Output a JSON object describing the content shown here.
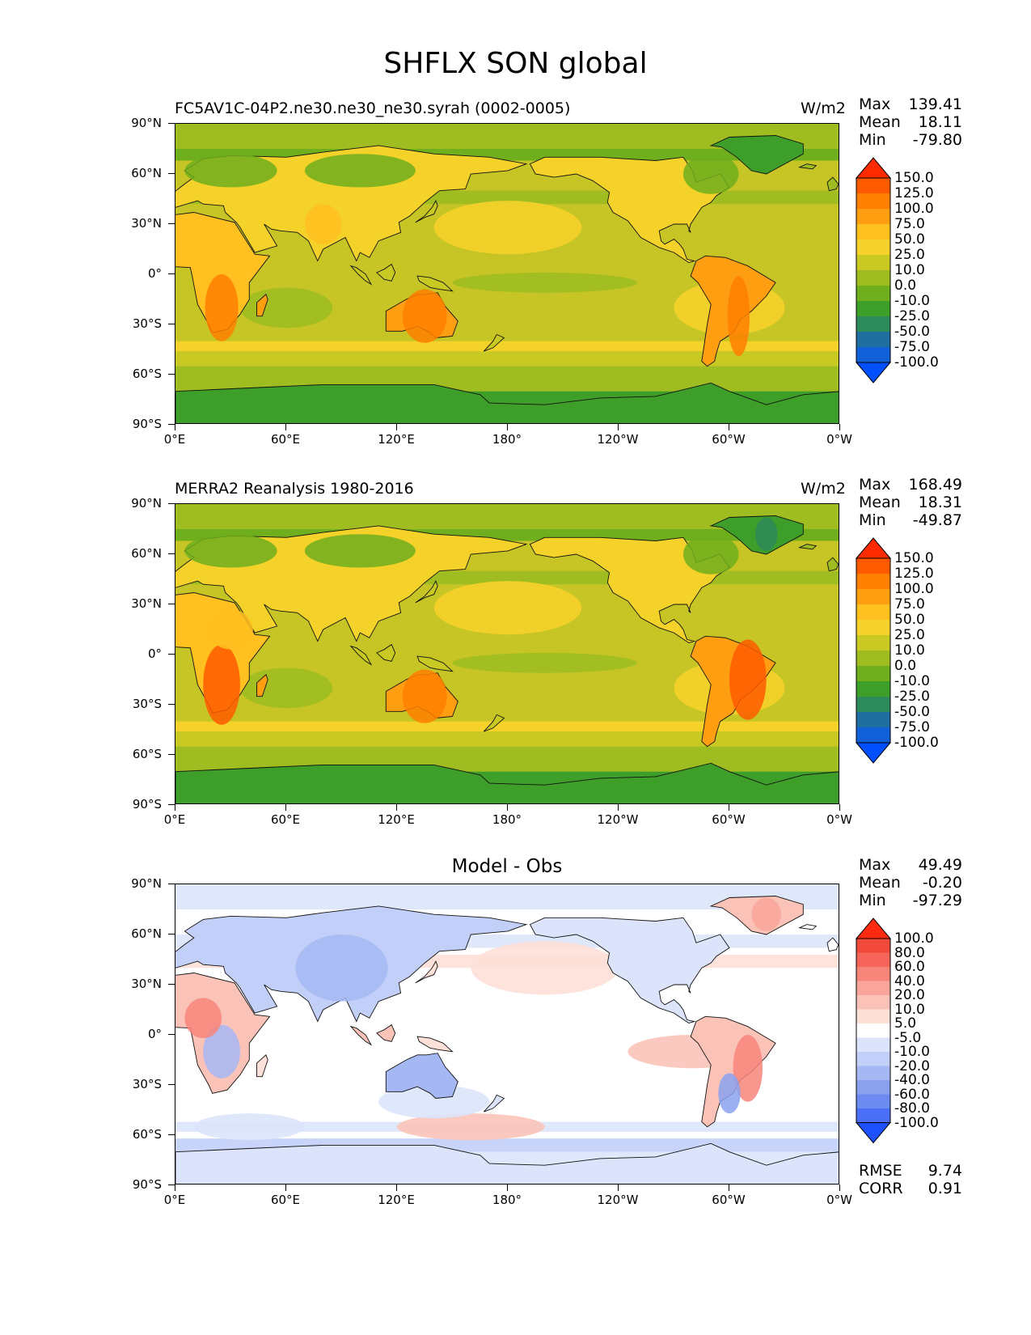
{
  "figure_title": "SHFLX SON global",
  "lat_labels": [
    "90°N",
    "60°N",
    "30°N",
    "0°",
    "30°S",
    "60°S",
    "90°S"
  ],
  "lon_labels": [
    "0°E",
    "60°E",
    "120°E",
    "180°",
    "120°W",
    "60°W",
    "0°W"
  ],
  "panels": [
    {
      "left_title": "FC5AV1C-04P2.ne30.ne30_ne30.syrah (0002-0005)",
      "right_title": "W/m2",
      "center_title": "",
      "stats": {
        "max_label": "Max",
        "max": "139.41",
        "mean_label": "Mean",
        "mean": "18.11",
        "min_label": "Min",
        "min": "-79.80"
      },
      "colorbar_levels": [
        "150.0",
        "125.0",
        "100.0",
        "75.0",
        "50.0",
        "25.0",
        "10.0",
        "0.0",
        "-10.0",
        "-25.0",
        "-50.0",
        "-75.0",
        "-100.0"
      ],
      "colorbar_colors": [
        "#ff2a00",
        "#ff5a00",
        "#ff7f00",
        "#ff9e10",
        "#ffc020",
        "#f5d22a",
        "#c9c923",
        "#9fbd20",
        "#6fae1c",
        "#3e9e2a",
        "#2d8a5a",
        "#1f6ea0",
        "#1060d8",
        "#0050ff"
      ]
    },
    {
      "left_title": "MERRA2 Reanalysis 1980-2016",
      "right_title": "W/m2",
      "center_title": "",
      "stats": {
        "max_label": "Max",
        "max": "168.49",
        "mean_label": "Mean",
        "mean": "18.31",
        "min_label": "Min",
        "min": "-49.87"
      },
      "colorbar_levels": [
        "150.0",
        "125.0",
        "100.0",
        "75.0",
        "50.0",
        "25.0",
        "10.0",
        "0.0",
        "-10.0",
        "-25.0",
        "-50.0",
        "-75.0",
        "-100.0"
      ],
      "colorbar_colors": [
        "#ff2a00",
        "#ff5a00",
        "#ff7f00",
        "#ff9e10",
        "#ffc020",
        "#f5d22a",
        "#c9c923",
        "#9fbd20",
        "#6fae1c",
        "#3e9e2a",
        "#2d8a5a",
        "#1f6ea0",
        "#1060d8",
        "#0050ff"
      ]
    },
    {
      "left_title": "",
      "right_title": "",
      "center_title": "Model - Obs",
      "stats": {
        "max_label": "Max",
        "max": "49.49",
        "mean_label": "Mean",
        "mean": "-0.20",
        "min_label": "Min",
        "min": "-97.29"
      },
      "colorbar_levels": [
        "100.0",
        "80.0",
        "60.0",
        "40.0",
        "20.0",
        "10.0",
        "5.0",
        "-5.0",
        "-10.0",
        "-20.0",
        "-40.0",
        "-60.0",
        "-80.0",
        "-100.0"
      ],
      "colorbar_colors": [
        "#ff2a10",
        "#f24a3a",
        "#f5655a",
        "#f7857a",
        "#f9a59a",
        "#fbc3b8",
        "#fde0d8",
        "#ffffff",
        "#dce4fb",
        "#c2cff8",
        "#a6b8f3",
        "#8aa2ee",
        "#6d8af0",
        "#4a6ef5",
        "#1e50ff"
      ],
      "footer": {
        "rmse_label": "RMSE",
        "rmse": "9.74",
        "corr_label": "CORR",
        "corr": "0.91"
      }
    }
  ]
}
